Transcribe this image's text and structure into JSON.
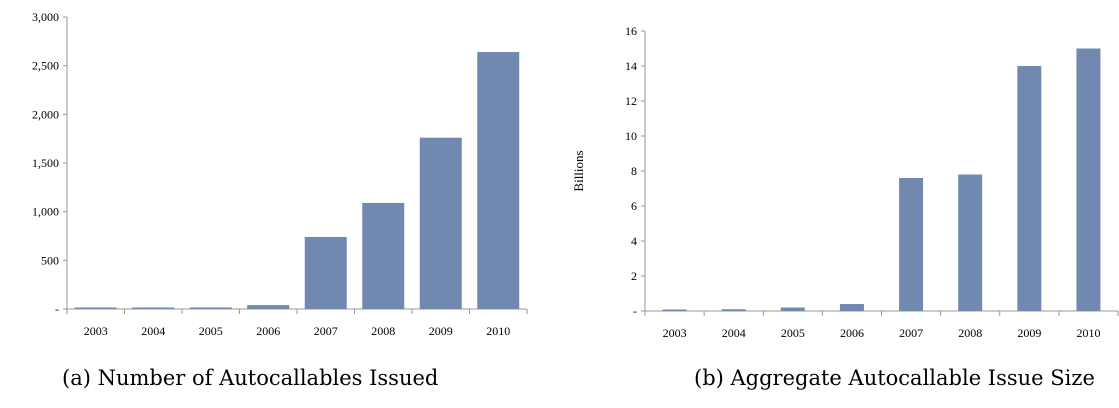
{
  "chart_data": [
    {
      "type": "bar",
      "caption": "(a) Number of Autocallables Issued",
      "categories": [
        "2003",
        "2004",
        "2005",
        "2006",
        "2007",
        "2008",
        "2009",
        "2010"
      ],
      "values": [
        10,
        12,
        15,
        40,
        740,
        1090,
        1760,
        2640
      ],
      "ylabel": "",
      "ylim": [
        0,
        3000
      ],
      "yticks": [
        0,
        500,
        1000,
        1500,
        2000,
        2500,
        3000
      ],
      "ytick_labels": [
        "-",
        "500",
        "1,000",
        "1,500",
        "2,000",
        "2,500",
        "3,000"
      ],
      "bar_color": "#7189b0",
      "grid": false
    },
    {
      "type": "bar",
      "caption": "(b) Aggregate Autocallable Issue Size",
      "categories": [
        "2003",
        "2004",
        "2005",
        "2006",
        "2007",
        "2008",
        "2009",
        "2010"
      ],
      "values": [
        0.02,
        0.1,
        0.2,
        0.4,
        7.6,
        7.8,
        14.0,
        15.0
      ],
      "ylabel": "Billions",
      "ylim": [
        0,
        16
      ],
      "yticks": [
        0,
        2,
        4,
        6,
        8,
        10,
        12,
        14,
        16
      ],
      "ytick_labels": [
        "-",
        "2",
        "4",
        "6",
        "8",
        "10",
        "12",
        "14",
        "16"
      ],
      "bar_color": "#7189b0",
      "grid": false
    }
  ]
}
